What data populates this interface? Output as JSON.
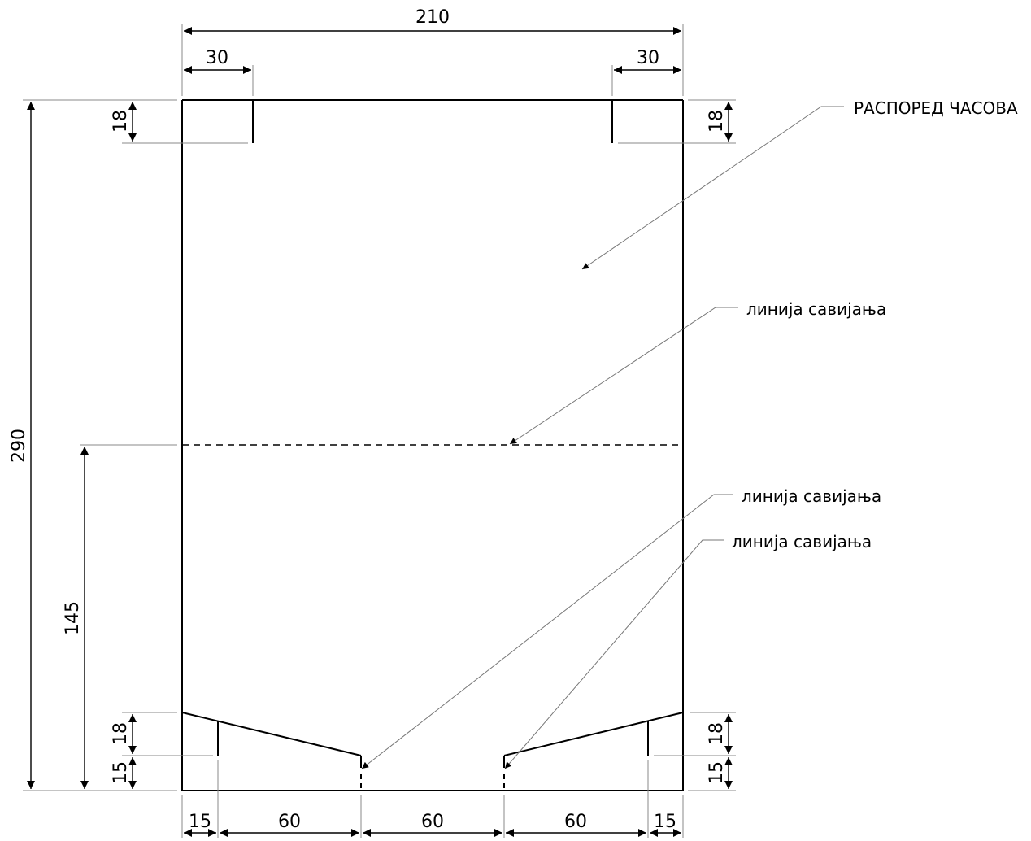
{
  "dimensions": {
    "overall_width": "210",
    "overall_height": "290",
    "top_left_slot_width": "30",
    "top_right_slot_width": "30",
    "top_left_slot_depth": "18",
    "top_right_slot_depth": "18",
    "fold_height": "145",
    "bottom_left_flap_rise": "18",
    "bottom_left_flap_base": "15",
    "bottom_right_flap_rise": "18",
    "bottom_right_flap_base": "15",
    "bottom_segments": [
      "15",
      "60",
      "60",
      "60",
      "15"
    ]
  },
  "labels": {
    "title": "РАСПОРЕД ЧАСОВА",
    "fold_line_1": "линија савијања",
    "fold_line_2": "линија савијања",
    "fold_line_3": "линија савијања"
  }
}
